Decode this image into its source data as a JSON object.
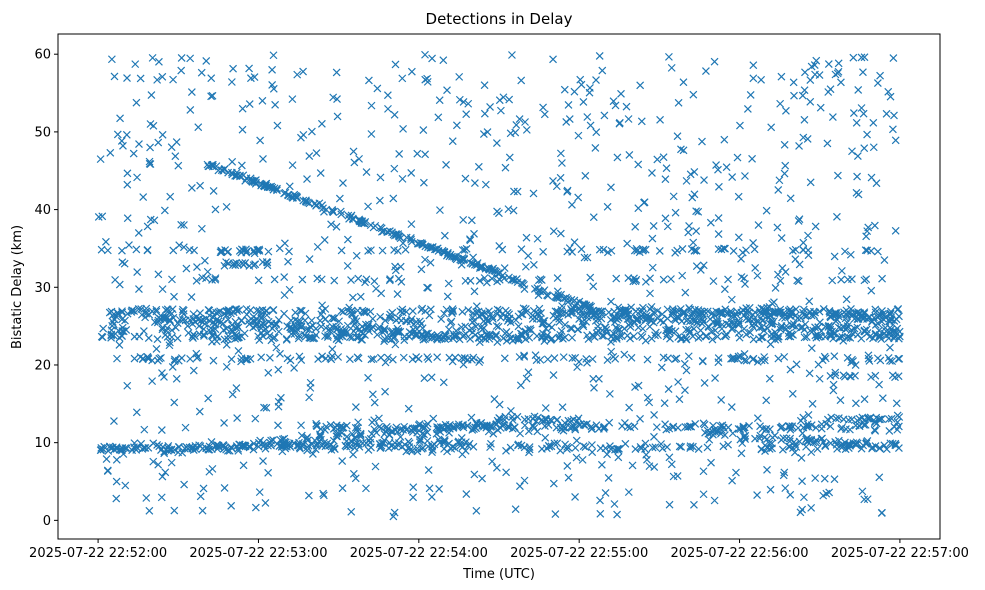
{
  "chart_data": {
    "type": "scatter",
    "title": "Detections in Delay",
    "xlabel": "Time (UTC)",
    "ylabel": "Bistatic Delay (km)",
    "x_unit": "seconds since 2025-07-22 22:52:00",
    "xlim": [
      -15,
      315
    ],
    "ylim": [
      -2.4,
      62.6
    ],
    "x_ticks": [
      {
        "value": 0,
        "label": "2025-07-22 22:52:00"
      },
      {
        "value": 60,
        "label": "2025-07-22 22:53:00"
      },
      {
        "value": 120,
        "label": "2025-07-22 22:54:00"
      },
      {
        "value": 180,
        "label": "2025-07-22 22:55:00"
      },
      {
        "value": 240,
        "label": "2025-07-22 22:56:00"
      },
      {
        "value": 300,
        "label": "2025-07-22 22:57:00"
      }
    ],
    "y_ticks": [
      0,
      10,
      20,
      30,
      40,
      50,
      60
    ],
    "marker": "x",
    "color": "#1f77b4",
    "grid": false,
    "series": [
      {
        "name": "detections",
        "tracks": [
          {
            "x0": 0,
            "x1": 300,
            "y0": 9.4,
            "y1": 9.4,
            "n": 170,
            "jitter": 0.45
          },
          {
            "x0": 0,
            "x1": 140,
            "y0": 9.0,
            "y1": 10.3,
            "n": 120,
            "jitter": 0.45
          },
          {
            "x0": 60,
            "x1": 155,
            "y0": 10.0,
            "y1": 12.6,
            "n": 90,
            "jitter": 0.5
          },
          {
            "x0": 80,
            "x1": 300,
            "y0": 12.0,
            "y1": 12.0,
            "n": 160,
            "jitter": 0.4
          },
          {
            "x0": 150,
            "x1": 180,
            "y0": 13.3,
            "y1": 12.8,
            "n": 25,
            "jitter": 0.3
          },
          {
            "x0": 225,
            "x1": 300,
            "y0": 11.3,
            "y1": 9.5,
            "n": 70,
            "jitter": 0.4
          },
          {
            "x0": 270,
            "x1": 300,
            "y0": 13.1,
            "y1": 13.1,
            "n": 25,
            "jitter": 0.3
          },
          {
            "x0": 0,
            "x1": 300,
            "y0": 23.6,
            "y1": 23.6,
            "n": 230,
            "jitter": 0.45
          },
          {
            "x0": 0,
            "x1": 300,
            "y0": 26.8,
            "y1": 26.8,
            "n": 230,
            "jitter": 0.45
          },
          {
            "x0": 0,
            "x1": 300,
            "y0": 25.8,
            "y1": 25.8,
            "n": 170,
            "jitter": 0.5
          },
          {
            "x0": 0,
            "x1": 300,
            "y0": 24.6,
            "y1": 24.6,
            "n": 150,
            "jitter": 0.5
          },
          {
            "x0": 20,
            "x1": 160,
            "y0": 26.0,
            "y1": 23.2,
            "n": 110,
            "jitter": 0.4
          },
          {
            "x0": 170,
            "x1": 300,
            "y0": 27.2,
            "y1": 26.3,
            "n": 90,
            "jitter": 0.4
          },
          {
            "x0": 180,
            "x1": 300,
            "y0": 26.5,
            "y1": 24.2,
            "n": 90,
            "jitter": 0.4
          },
          {
            "x0": 40,
            "x1": 160,
            "y0": 46.0,
            "y1": 30.5,
            "n": 200,
            "jitter": 0.25
          },
          {
            "x0": 163,
            "x1": 185,
            "y0": 29.8,
            "y1": 27.4,
            "n": 30,
            "jitter": 0.25
          },
          {
            "x0": 45,
            "x1": 65,
            "y0": 34.6,
            "y1": 34.6,
            "n": 18,
            "jitter": 0.2
          },
          {
            "x0": 45,
            "x1": 65,
            "y0": 33.0,
            "y1": 33.0,
            "n": 18,
            "jitter": 0.2
          },
          {
            "x0": 0,
            "x1": 300,
            "y0": 20.8,
            "y1": 20.8,
            "n": 110,
            "jitter": 0.3
          },
          {
            "x0": 0,
            "x1": 300,
            "y0": 34.8,
            "y1": 34.8,
            "n": 60,
            "jitter": 0.2
          },
          {
            "x0": 0,
            "x1": 300,
            "y0": 31.0,
            "y1": 31.0,
            "n": 50,
            "jitter": 0.3
          },
          {
            "x0": 270,
            "x1": 300,
            "y0": 18.6,
            "y1": 18.6,
            "n": 10,
            "jitter": 0.2
          },
          {
            "x0": 280,
            "x1": 300,
            "y0": 59.5,
            "y1": 59.5,
            "n": 4,
            "jitter": 0.3
          }
        ],
        "noise": {
          "count": 900,
          "x_range": [
            0,
            300
          ],
          "y_range": [
            0.5,
            60
          ]
        },
        "seed": 7
      }
    ]
  }
}
